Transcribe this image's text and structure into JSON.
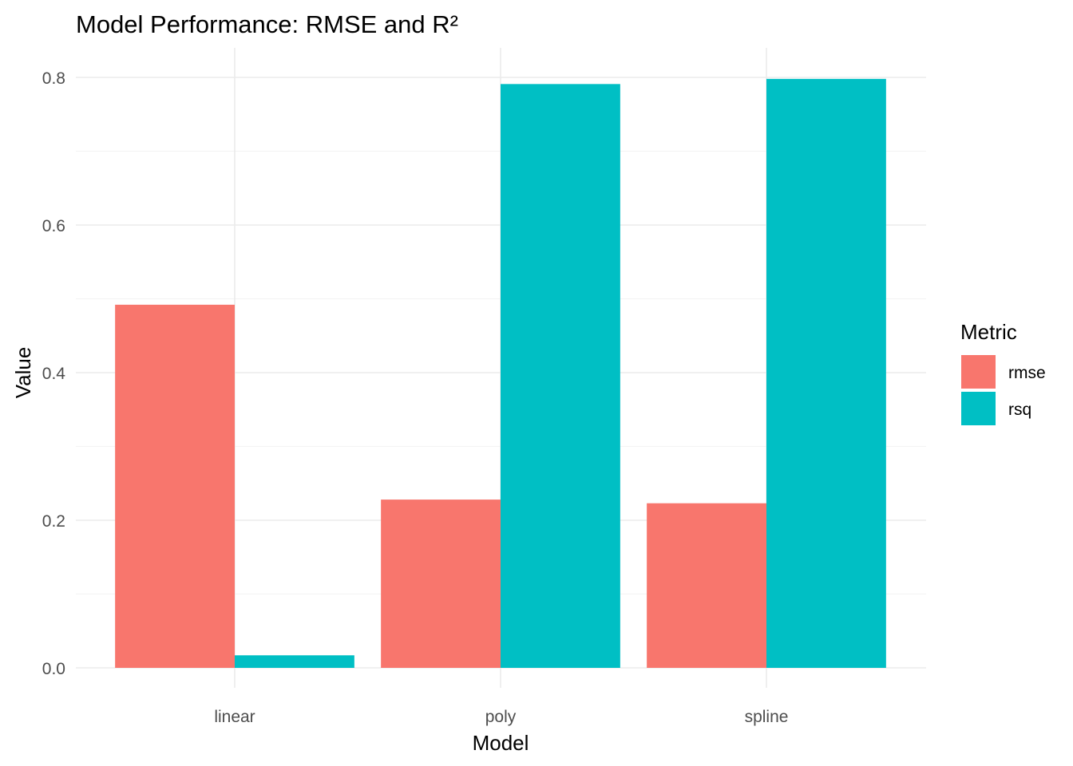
{
  "chart_data": {
    "type": "bar",
    "title": "Model Performance: RMSE and R²",
    "xlabel": "Model",
    "ylabel": "Value",
    "categories": [
      "linear",
      "poly",
      "spline"
    ],
    "series": [
      {
        "name": "rmse",
        "values": [
          0.492,
          0.228,
          0.223
        ],
        "color": "#F8766D"
      },
      {
        "name": "rsq",
        "values": [
          0.017,
          0.791,
          0.798
        ],
        "color": "#00BFC4"
      }
    ],
    "ylim": [
      0,
      0.8
    ],
    "yticks": [
      "0.0",
      "0.2",
      "0.4",
      "0.6",
      "0.8"
    ],
    "ytick_values": [
      0,
      0.2,
      0.4,
      0.6,
      0.8
    ],
    "legend_title": "Metric",
    "legend_position": "right",
    "grid": true
  }
}
